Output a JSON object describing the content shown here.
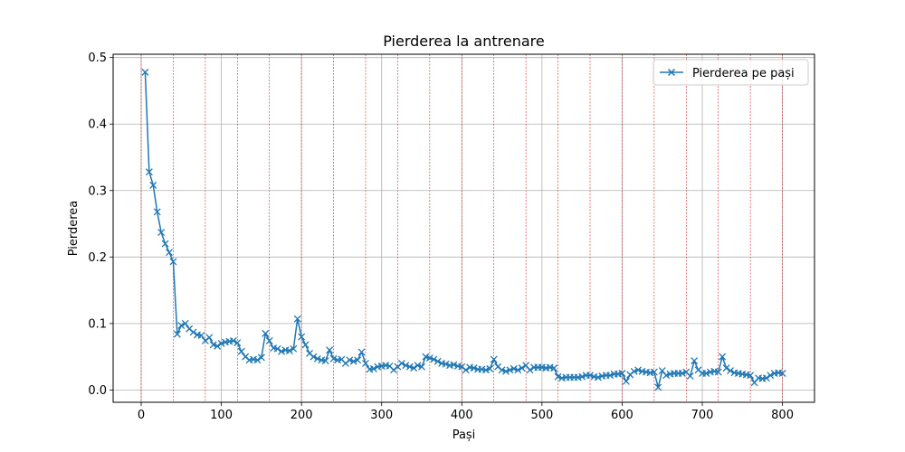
{
  "chart_data": {
    "type": "line",
    "title": "Pierderea la antrenare",
    "xlabel": "Pași",
    "ylabel": "Pierderea",
    "xlim": [
      -35,
      840
    ],
    "ylim": [
      -0.0185,
      0.505
    ],
    "xticks": [
      0,
      100,
      200,
      300,
      400,
      500,
      600,
      700,
      800
    ],
    "yticks": [
      0.0,
      0.1,
      0.2,
      0.3,
      0.4,
      0.5
    ],
    "xtick_labels": [
      "0",
      "100",
      "200",
      "300",
      "400",
      "500",
      "600",
      "700",
      "800"
    ],
    "ytick_labels": [
      "0.0",
      "0.1",
      "0.2",
      "0.3",
      "0.4",
      "0.5"
    ],
    "grid": true,
    "legend_position": "top-right",
    "epoch_lines": [
      0,
      40,
      80,
      120,
      160,
      200,
      240,
      280,
      320,
      360,
      400,
      440,
      480,
      520,
      560,
      600,
      640,
      680,
      720,
      760,
      800
    ],
    "series": [
      {
        "name": "Pierderea pe pași",
        "color": "#1f77b4",
        "marker": "x",
        "x": [
          5,
          10,
          15,
          20,
          25,
          30,
          35,
          40,
          45,
          50,
          55,
          60,
          65,
          70,
          75,
          80,
          85,
          90,
          95,
          100,
          105,
          110,
          115,
          120,
          125,
          130,
          135,
          140,
          145,
          150,
          155,
          160,
          165,
          170,
          175,
          180,
          185,
          190,
          195,
          200,
          205,
          210,
          215,
          220,
          225,
          230,
          235,
          240,
          245,
          250,
          255,
          260,
          265,
          270,
          275,
          280,
          285,
          290,
          295,
          300,
          305,
          310,
          315,
          320,
          325,
          330,
          335,
          340,
          345,
          350,
          355,
          360,
          365,
          370,
          375,
          380,
          385,
          390,
          395,
          400,
          405,
          410,
          415,
          420,
          425,
          430,
          435,
          440,
          445,
          450,
          455,
          460,
          465,
          470,
          475,
          480,
          485,
          490,
          495,
          500,
          505,
          510,
          515,
          520,
          525,
          530,
          535,
          540,
          545,
          550,
          555,
          560,
          565,
          570,
          575,
          580,
          585,
          590,
          595,
          600,
          605,
          610,
          615,
          620,
          625,
          630,
          635,
          640,
          645,
          650,
          655,
          660,
          665,
          670,
          675,
          680,
          685,
          690,
          695,
          700,
          705,
          710,
          715,
          720,
          725,
          730,
          735,
          740,
          745,
          750,
          755,
          760,
          765,
          770,
          775,
          780,
          785,
          790,
          795,
          800
        ],
        "y": [
          0.478,
          0.328,
          0.308,
          0.268,
          0.237,
          0.22,
          0.207,
          0.193,
          0.084,
          0.097,
          0.1,
          0.092,
          0.087,
          0.083,
          0.082,
          0.074,
          0.079,
          0.068,
          0.066,
          0.07,
          0.072,
          0.073,
          0.074,
          0.071,
          0.058,
          0.05,
          0.045,
          0.046,
          0.045,
          0.049,
          0.085,
          0.074,
          0.063,
          0.062,
          0.058,
          0.06,
          0.059,
          0.062,
          0.107,
          0.08,
          0.068,
          0.055,
          0.05,
          0.047,
          0.045,
          0.044,
          0.06,
          0.047,
          0.045,
          0.046,
          0.04,
          0.045,
          0.043,
          0.045,
          0.057,
          0.04,
          0.031,
          0.032,
          0.035,
          0.036,
          0.037,
          0.036,
          0.03,
          0.035,
          0.04,
          0.037,
          0.035,
          0.033,
          0.037,
          0.035,
          0.05,
          0.048,
          0.046,
          0.043,
          0.04,
          0.039,
          0.037,
          0.038,
          0.036,
          0.035,
          0.03,
          0.034,
          0.033,
          0.031,
          0.031,
          0.03,
          0.032,
          0.046,
          0.035,
          0.03,
          0.028,
          0.03,
          0.032,
          0.03,
          0.033,
          0.037,
          0.03,
          0.034,
          0.034,
          0.034,
          0.033,
          0.034,
          0.033,
          0.02,
          0.018,
          0.019,
          0.019,
          0.019,
          0.019,
          0.02,
          0.022,
          0.022,
          0.02,
          0.019,
          0.021,
          0.022,
          0.022,
          0.024,
          0.024,
          0.025,
          0.013,
          0.023,
          0.028,
          0.03,
          0.028,
          0.027,
          0.026,
          0.027,
          0.004,
          0.029,
          0.022,
          0.024,
          0.025,
          0.025,
          0.025,
          0.027,
          0.021,
          0.044,
          0.03,
          0.025,
          0.025,
          0.027,
          0.028,
          0.027,
          0.05,
          0.033,
          0.029,
          0.026,
          0.025,
          0.024,
          0.023,
          0.022,
          0.011,
          0.018,
          0.017,
          0.018,
          0.022,
          0.025,
          0.026,
          0.025
        ]
      }
    ]
  }
}
